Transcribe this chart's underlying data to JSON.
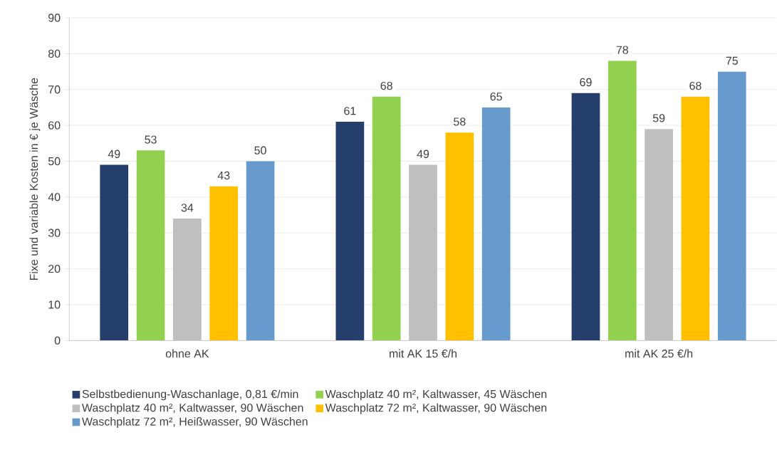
{
  "chart_data": {
    "type": "bar",
    "ylabel": "Fixe und variable Kosten in € je Wäsche",
    "categories": [
      "ohne AK",
      "mit AK 15 €/h",
      "mit AK 25 €/h"
    ],
    "series": [
      {
        "name": "Selbstbedienung-Waschanlage, 0,81 €/min",
        "color": "#243f6b",
        "values": [
          49,
          61,
          69
        ]
      },
      {
        "name": "Waschplatz 40 m², Kaltwasser, 45 Wäschen",
        "color": "#92d050",
        "values": [
          53,
          68,
          78
        ]
      },
      {
        "name": "Waschplatz 40 m², Kaltwasser, 90 Wäschen",
        "color": "#bfbfbf",
        "values": [
          34,
          49,
          59
        ]
      },
      {
        "name": "Waschplatz 72 m², Kaltwasser, 90 Wäschen",
        "color": "#ffc000",
        "values": [
          43,
          58,
          68
        ]
      },
      {
        "name": "Waschplatz 72 m², Heißwasser, 90 Wäschen",
        "color": "#6699cc",
        "values": [
          50,
          65,
          75
        ]
      }
    ],
    "ylim": [
      0,
      90
    ],
    "yticks": [
      0,
      10,
      20,
      30,
      40,
      50,
      60,
      70,
      80,
      90
    ],
    "grid": "y",
    "legend": "bottom",
    "data_labels": true
  }
}
